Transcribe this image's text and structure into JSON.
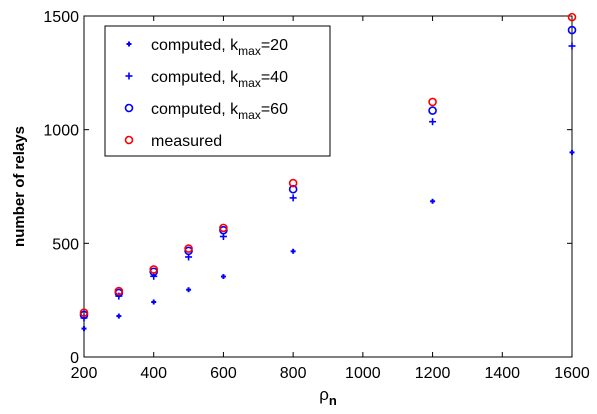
{
  "chart_data": {
    "type": "scatter",
    "xlabel": "ρ",
    "xlabel_sub": "n",
    "ylabel": "number of relays",
    "xlim": [
      200,
      1600
    ],
    "ylim": [
      0,
      1500
    ],
    "xticks": [
      200,
      400,
      600,
      800,
      1000,
      1200,
      1400,
      1600
    ],
    "yticks": [
      0,
      500,
      1000,
      1500
    ],
    "grid": false,
    "legend_position": "top-left",
    "series": [
      {
        "name": "computed, k",
        "name_sub": "max",
        "name_suffix": "=20",
        "marker": "dot",
        "color": "#0000ff",
        "x": [
          200,
          300,
          400,
          500,
          600,
          800,
          1200,
          1600
        ],
        "y": [
          125,
          180,
          242,
          296,
          354,
          465,
          685,
          900
        ]
      },
      {
        "name": "computed, k",
        "name_sub": "max",
        "name_suffix": "=40",
        "marker": "plus",
        "color": "#0000ff",
        "x": [
          200,
          300,
          400,
          500,
          600,
          800,
          1200,
          1600
        ],
        "y": [
          172,
          268,
          355,
          440,
          530,
          700,
          1035,
          1368
        ]
      },
      {
        "name": "computed, k",
        "name_sub": "max",
        "name_suffix": "=60",
        "marker": "circle",
        "color": "#0000ff",
        "x": [
          200,
          300,
          400,
          500,
          600,
          800,
          1200,
          1600
        ],
        "y": [
          185,
          282,
          375,
          467,
          558,
          738,
          1084,
          1438
        ]
      },
      {
        "name": "measured",
        "marker": "circle",
        "color": "#ff0000",
        "x": [
          200,
          300,
          400,
          500,
          600,
          800,
          1200,
          1600
        ],
        "y": [
          195,
          290,
          385,
          477,
          568,
          765,
          1122,
          1495
        ]
      }
    ]
  }
}
